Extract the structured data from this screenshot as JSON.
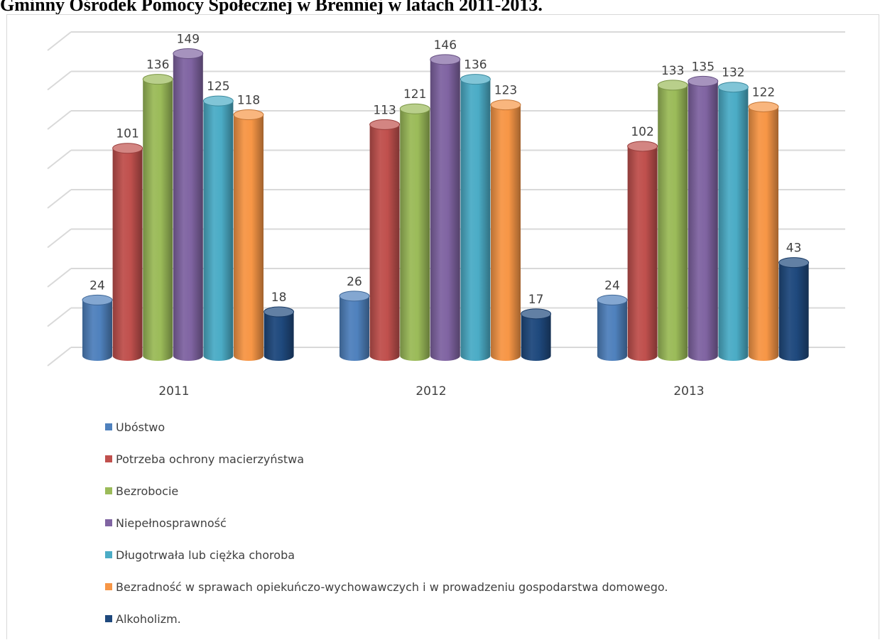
{
  "page": {
    "title": "Gminny Ośrodek Pomocy Społecznej w Brenniej w latach 2011-2013."
  },
  "chart_data": {
    "type": "bar",
    "style": "3d-cylinder",
    "title": "",
    "xlabel": "",
    "ylabel": "",
    "categories": [
      "2011",
      "2012",
      "2013"
    ],
    "ylim": [
      0,
      160
    ],
    "grid": true,
    "legend_position": "bottom",
    "data_labels": true,
    "series": [
      {
        "name": "Ubóstwo",
        "color": "#4f81bd",
        "values": [
          24,
          26,
          24
        ]
      },
      {
        "name": "Potrzeba ochrony macierzyństwa",
        "color": "#c0504d",
        "values": [
          101,
          113,
          102
        ]
      },
      {
        "name": "Bezrobocie",
        "color": "#9bbb59",
        "values": [
          136,
          121,
          133
        ]
      },
      {
        "name": "Niepełnosprawność",
        "color": "#8064a2",
        "values": [
          149,
          146,
          135
        ]
      },
      {
        "name": "Długotrwała lub ciężka choroba",
        "color": "#4bacc6",
        "values": [
          125,
          136,
          132
        ]
      },
      {
        "name": "Bezradność w sprawach opiekuńczo-wychowawczych i w prowadzeniu gospodarstwa domowego.",
        "color": "#f79646",
        "values": [
          118,
          123,
          122
        ]
      },
      {
        "name": "Alkoholizm.",
        "color": "#1f497d",
        "values": [
          18,
          17,
          43
        ]
      }
    ]
  }
}
